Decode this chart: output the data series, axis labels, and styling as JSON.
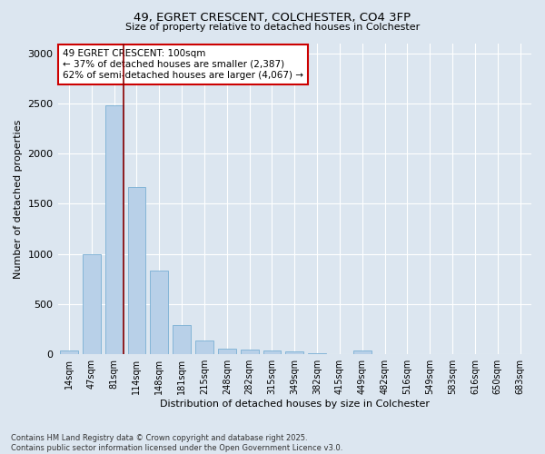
{
  "title_line1": "49, EGRET CRESCENT, COLCHESTER, CO4 3FP",
  "title_line2": "Size of property relative to detached houses in Colchester",
  "xlabel": "Distribution of detached houses by size in Colchester",
  "ylabel": "Number of detached properties",
  "categories": [
    "14sqm",
    "47sqm",
    "81sqm",
    "114sqm",
    "148sqm",
    "181sqm",
    "215sqm",
    "248sqm",
    "282sqm",
    "315sqm",
    "349sqm",
    "382sqm",
    "415sqm",
    "449sqm",
    "482sqm",
    "516sqm",
    "549sqm",
    "583sqm",
    "616sqm",
    "650sqm",
    "683sqm"
  ],
  "values": [
    40,
    1000,
    2480,
    1670,
    830,
    290,
    140,
    55,
    50,
    40,
    25,
    10,
    0,
    35,
    0,
    0,
    0,
    0,
    0,
    0,
    0
  ],
  "bar_color": "#b8d0e8",
  "bar_edge_color": "#7aafd4",
  "vline_color": "#8b0000",
  "vline_x_index": 2,
  "annotation_text": "49 EGRET CRESCENT: 100sqm\n← 37% of detached houses are smaller (2,387)\n62% of semi-detached houses are larger (4,067) →",
  "annotation_box_color": "#ffffff",
  "annotation_box_edge": "#cc0000",
  "bg_color": "#dce6f0",
  "plot_bg_color": "#dce6f0",
  "grid_color": "#ffffff",
  "ylim": [
    0,
    3100
  ],
  "yticks": [
    0,
    500,
    1000,
    1500,
    2000,
    2500,
    3000
  ],
  "footnote": "Contains HM Land Registry data © Crown copyright and database right 2025.\nContains public sector information licensed under the Open Government Licence v3.0."
}
